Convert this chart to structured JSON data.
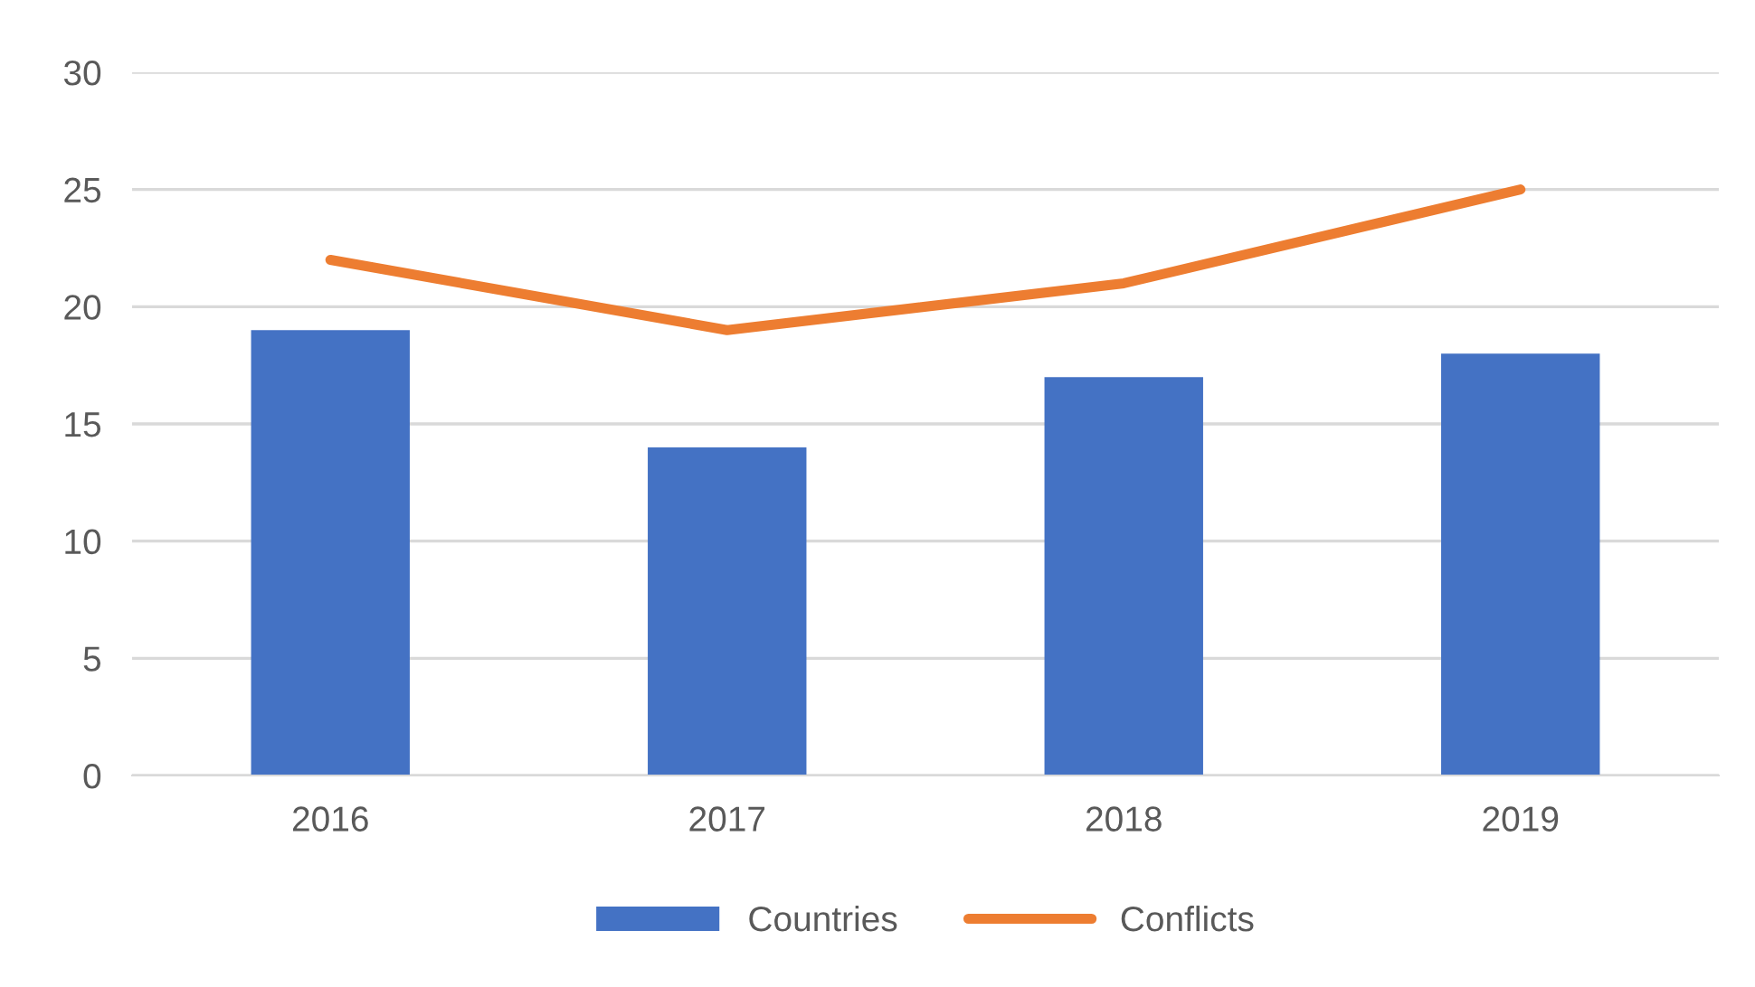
{
  "chart_data": {
    "type": "bar",
    "categories": [
      "2016",
      "2017",
      "2018",
      "2019"
    ],
    "series": [
      {
        "name": "Countries",
        "color": "#4472c4",
        "values": [
          19,
          14,
          17,
          18
        ]
      },
      {
        "name": "Conflicts",
        "type": "line",
        "color": "#ed7d31",
        "values": [
          22,
          19,
          21,
          25
        ]
      }
    ],
    "ylim": [
      0,
      30
    ],
    "yticks": [
      0,
      5,
      10,
      15,
      20,
      25,
      30
    ],
    "grid": "y",
    "legend": "bottom",
    "marker": "none"
  }
}
